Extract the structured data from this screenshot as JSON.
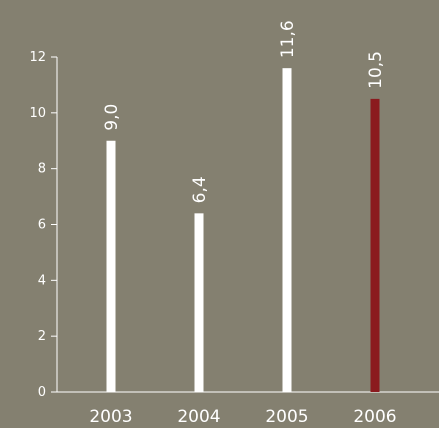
{
  "chart_data": {
    "type": "bar",
    "categories": [
      "2003",
      "2004",
      "2005",
      "2006"
    ],
    "values": [
      9.0,
      6.4,
      11.6,
      10.5
    ],
    "value_labels": [
      "9,0",
      "6,4",
      "11,6",
      "10,5"
    ],
    "ylim": [
      0,
      12
    ],
    "yticks": [
      0,
      2,
      4,
      6,
      8,
      10,
      12
    ],
    "title": "",
    "xlabel": "",
    "ylabel": "",
    "grid": false,
    "colors": {
      "background": "#848070",
      "axis": "#ffffff",
      "default_bar": "#ffffff",
      "highlight_bar": "#8b1a1e",
      "highlight_category": "2006"
    }
  }
}
